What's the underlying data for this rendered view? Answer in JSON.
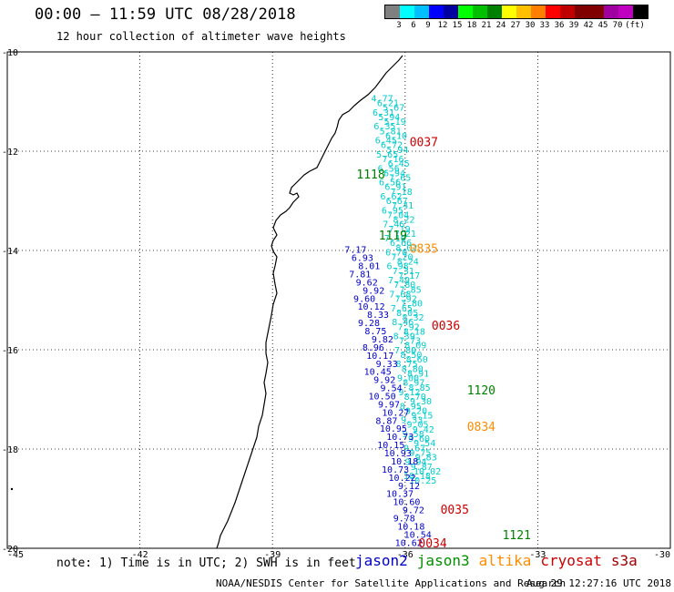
{
  "header": {
    "title": "00:00 – 11:59 UTC 08/28/2018",
    "subtitle": "12 hour collection of altimeter wave heights"
  },
  "legend": {
    "colors": [
      "#808080",
      "#00ffff",
      "#00c0ff",
      "#0000ff",
      "#0000a0",
      "#00ff00",
      "#00c000",
      "#008000",
      "#ffff00",
      "#ffc000",
      "#ff8000",
      "#ff0000",
      "#c00000",
      "#800000",
      "#800000",
      "#a000a0",
      "#c000c0",
      "#000000"
    ],
    "ticks": [
      "3",
      "6",
      "9",
      "12",
      "15",
      "18",
      "21",
      "24",
      "27",
      "30",
      "33",
      "36",
      "39",
      "42",
      "45",
      "70",
      "(ft)"
    ]
  },
  "map": {
    "lon_ticks": [
      "-45",
      "-42",
      "-39",
      "-36",
      "-33",
      "-30"
    ],
    "lat_ticks": [
      "-10",
      "-12",
      "-14",
      "-16",
      "-18",
      "-20"
    ],
    "lon_range": [
      -45,
      -30
    ],
    "lat_range": [
      -10,
      -20
    ],
    "grid": true,
    "pass_times": [
      {
        "text": "0037",
        "lon": -35.9,
        "lat": -11.9,
        "color": "#cc0000"
      },
      {
        "text": "1118",
        "lon": -37.1,
        "lat": -12.55,
        "color": "#008000"
      },
      {
        "text": "1119",
        "lon": -36.6,
        "lat": -13.78,
        "color": "#008000"
      },
      {
        "text": "0835",
        "lon": -35.9,
        "lat": -14.05,
        "color": "#ff8c00"
      },
      {
        "text": "0036",
        "lon": -35.4,
        "lat": -15.6,
        "color": "#cc0000"
      },
      {
        "text": "1120",
        "lon": -34.6,
        "lat": -16.9,
        "color": "#008000"
      },
      {
        "text": "0834",
        "lon": -34.6,
        "lat": -17.63,
        "color": "#ff8c00"
      },
      {
        "text": "0035",
        "lon": -35.2,
        "lat": -19.3,
        "color": "#cc0000"
      },
      {
        "text": "1121",
        "lon": -33.8,
        "lat": -19.82,
        "color": "#008000"
      },
      {
        "text": "0034",
        "lon": -35.7,
        "lat": -19.98,
        "color": "#cc0000"
      }
    ],
    "cyan_track": {
      "color": "#00cccc",
      "values": [
        "4.77",
        "6.21",
        "5.67",
        "6.31",
        "5.94",
        "5.19",
        "6.35",
        "5.81",
        "6.10",
        "6.45",
        "6.72",
        "5.94",
        "5.65",
        "7.16",
        "6.45",
        "6.56",
        "6.94",
        "7.65",
        "6.56",
        "6.91",
        "7.18",
        "6.62",
        "6.67",
        "7.41",
        "6.95",
        "7.04",
        "8.22",
        "7.46",
        "7.19",
        "7.21",
        "7.10",
        "6.66",
        "8.02",
        "6.70",
        "7.20",
        "8.24",
        "6.98",
        "7.31",
        "7.17",
        "7.49",
        "7.80",
        "7.85",
        "7.68",
        "7.92",
        "7.80",
        "7.65",
        "8.05",
        "8.32",
        "8.46",
        "7.92",
        "8.18",
        "8.39",
        "7.73",
        "8.09",
        "7.80",
        "8.50",
        "8.60",
        "8.75",
        "8.80",
        "8.91",
        "9.00",
        "8.97",
        "8.85",
        "9.12",
        "8.70",
        "9.30",
        "8.95",
        "9.20",
        "9.15",
        "9.33",
        "9.05",
        "9.42",
        "9.58",
        "9.60",
        "9.54",
        "9.67",
        "9.75",
        "9.83",
        "9.94",
        "9.87",
        "10.02",
        "10.18",
        "10.25"
      ]
    },
    "blue_track": {
      "color": "#0000cc",
      "values": [
        "7.17",
        "6.93",
        "8.01",
        "7.81",
        "9.62",
        "9.92",
        "9.60",
        "10.12",
        "8.33",
        "9.28",
        "8.75",
        "9.82",
        "8.96",
        "10.17",
        "9.33",
        "10.45",
        "9.92",
        "9.54",
        "10.50",
        "9.97",
        "10.27",
        "8.87",
        "10.95",
        "10.73",
        "10.15",
        "10.93",
        "10.18",
        "10.73",
        "10.22",
        "9.12",
        "10.37",
        "10.60",
        "9.72",
        "9.78",
        "10.18",
        "10.54",
        "10.62"
      ]
    }
  },
  "footer": {
    "note": "note: 1) Time is in UTC; 2) SWH is in feet",
    "satellites": [
      {
        "name": "jason2",
        "color": "#0000cc"
      },
      {
        "name": "jason3",
        "color": "#009000"
      },
      {
        "name": "altika",
        "color": "#ff8c00"
      },
      {
        "name": "cryosat",
        "color": "#cc0000"
      },
      {
        "name": "s3a",
        "color": "#a00000"
      }
    ],
    "credit": "NOAA/NESDIS Center for Satellite Applications and Research",
    "timestamp": "Aug 29 12:27:16 UTC 2018"
  }
}
